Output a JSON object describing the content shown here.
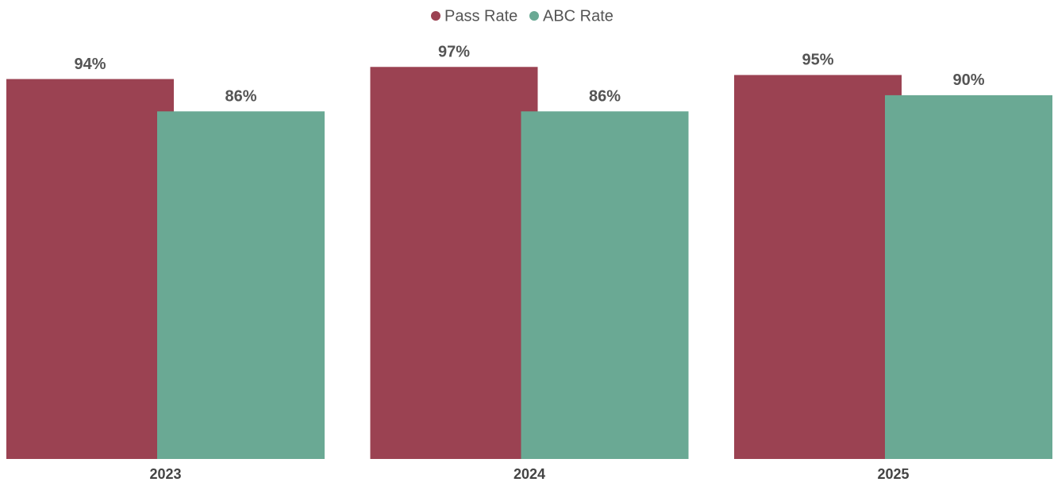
{
  "chart_data": {
    "type": "bar",
    "categories": [
      "2023",
      "2024",
      "2025"
    ],
    "series": [
      {
        "name": "Pass Rate",
        "color": "#9b4252",
        "values": [
          94,
          97,
          95
        ],
        "value_labels": [
          "94%",
          "97%",
          "95%"
        ]
      },
      {
        "name": "ABC Rate",
        "color": "#6aa994",
        "values": [
          86,
          86,
          90
        ],
        "value_labels": [
          "86%",
          "86%",
          "90%"
        ]
      }
    ],
    "ylim": [
      0,
      100
    ],
    "legend": "top"
  }
}
